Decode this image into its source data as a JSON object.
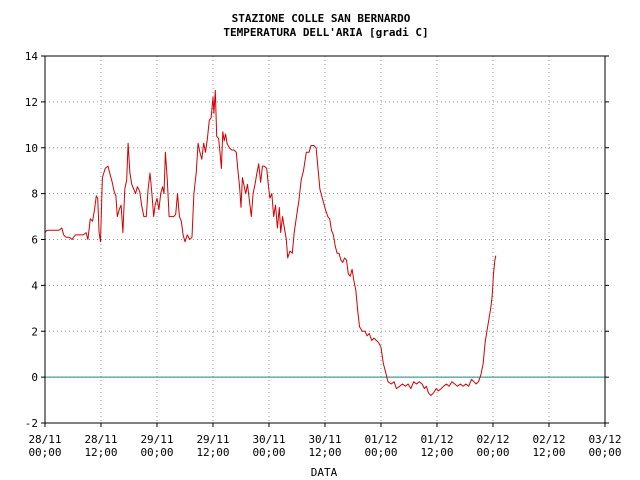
{
  "chart_data": {
    "type": "line",
    "title": "STAZIONE COLLE SAN BERNARDO",
    "subtitle": "TEMPERATURA DELL'ARIA [gradi C]",
    "xlabel": "DATA",
    "ylabel": "",
    "ylim": [
      -2,
      14
    ],
    "yticks": [
      "-2",
      "0",
      "2",
      "4",
      "6",
      "8",
      "10",
      "12",
      "14"
    ],
    "xlim": [
      0,
      120
    ],
    "xticks": [
      {
        "x": 0,
        "line1": "28/11",
        "line2": "00;00"
      },
      {
        "x": 12,
        "line1": "28/11",
        "line2": "12;00"
      },
      {
        "x": 24,
        "line1": "29/11",
        "line2": "00;00"
      },
      {
        "x": 36,
        "line1": "29/11",
        "line2": "12;00"
      },
      {
        "x": 48,
        "line1": "30/11",
        "line2": "00;00"
      },
      {
        "x": 60,
        "line1": "30/11",
        "line2": "12;00"
      },
      {
        "x": 72,
        "line1": "01/12",
        "line2": "00;00"
      },
      {
        "x": 84,
        "line1": "01/12",
        "line2": "12;00"
      },
      {
        "x": 96,
        "line1": "02/12",
        "line2": "00;00"
      },
      {
        "x": 108,
        "line1": "02/12",
        "line2": "12;00"
      },
      {
        "x": 120,
        "line1": "03/12",
        "line2": "00;00"
      }
    ],
    "grid": true,
    "reference_line": {
      "y": 0,
      "color": "#1a8a8a"
    },
    "series": [
      {
        "color": "#d40000",
        "points": [
          [
            0.0,
            6.3
          ],
          [
            0.4,
            6.4
          ],
          [
            1.2,
            6.4
          ],
          [
            2.0,
            6.4
          ],
          [
            3.0,
            6.4
          ],
          [
            3.6,
            6.5
          ],
          [
            4.0,
            6.2
          ],
          [
            4.5,
            6.1
          ],
          [
            5.2,
            6.1
          ],
          [
            5.8,
            6.0
          ],
          [
            6.5,
            6.2
          ],
          [
            7.5,
            6.2
          ],
          [
            8.2,
            6.2
          ],
          [
            8.8,
            6.3
          ],
          [
            9.2,
            6.0
          ],
          [
            9.7,
            6.9
          ],
          [
            10.2,
            6.8
          ],
          [
            10.6,
            7.3
          ],
          [
            11.0,
            7.9
          ],
          [
            11.3,
            7.8
          ],
          [
            11.6,
            6.3
          ],
          [
            11.9,
            5.9
          ],
          [
            12.3,
            8.7
          ],
          [
            12.9,
            9.1
          ],
          [
            13.5,
            9.2
          ],
          [
            14.0,
            8.8
          ],
          [
            14.4,
            8.5
          ],
          [
            14.8,
            8.1
          ],
          [
            15.2,
            7.9
          ],
          [
            15.5,
            7.0
          ],
          [
            15.9,
            7.3
          ],
          [
            16.3,
            7.5
          ],
          [
            16.7,
            6.3
          ],
          [
            17.1,
            8.2
          ],
          [
            17.5,
            8.6
          ],
          [
            17.8,
            10.2
          ],
          [
            18.2,
            8.9
          ],
          [
            18.6,
            8.4
          ],
          [
            19.0,
            8.2
          ],
          [
            19.4,
            8.0
          ],
          [
            19.8,
            8.3
          ],
          [
            20.3,
            8.1
          ],
          [
            20.7,
            7.5
          ],
          [
            21.2,
            7.0
          ],
          [
            21.7,
            7.0
          ],
          [
            22.1,
            8.2
          ],
          [
            22.5,
            8.9
          ],
          [
            22.9,
            8.0
          ],
          [
            23.3,
            7.0
          ],
          [
            23.6,
            7.5
          ],
          [
            24.0,
            7.8
          ],
          [
            24.4,
            7.3
          ],
          [
            24.8,
            8.0
          ],
          [
            25.2,
            8.3
          ],
          [
            25.5,
            8.0
          ],
          [
            25.8,
            9.8
          ],
          [
            26.2,
            8.6
          ],
          [
            26.6,
            7.0
          ],
          [
            27.0,
            7.0
          ],
          [
            27.6,
            7.0
          ],
          [
            28.0,
            7.1
          ],
          [
            28.4,
            8.0
          ],
          [
            28.8,
            7.0
          ],
          [
            29.2,
            6.8
          ],
          [
            29.6,
            6.2
          ],
          [
            30.0,
            5.9
          ],
          [
            30.5,
            6.2
          ],
          [
            31.0,
            6.0
          ],
          [
            31.5,
            6.1
          ],
          [
            31.9,
            8.0
          ],
          [
            32.4,
            8.9
          ],
          [
            32.8,
            10.2
          ],
          [
            33.2,
            9.8
          ],
          [
            33.6,
            9.5
          ],
          [
            34.0,
            10.2
          ],
          [
            34.4,
            9.8
          ],
          [
            34.8,
            10.4
          ],
          [
            35.2,
            11.2
          ],
          [
            35.6,
            11.3
          ],
          [
            36.0,
            12.2
          ],
          [
            36.2,
            11.5
          ],
          [
            36.5,
            12.5
          ],
          [
            36.8,
            10.5
          ],
          [
            37.2,
            10.4
          ],
          [
            37.5,
            9.8
          ],
          [
            37.8,
            9.1
          ],
          [
            38.1,
            10.7
          ],
          [
            38.4,
            10.3
          ],
          [
            38.7,
            10.6
          ],
          [
            39.0,
            10.2
          ],
          [
            39.5,
            10.0
          ],
          [
            40.0,
            9.9
          ],
          [
            40.5,
            9.9
          ],
          [
            41.0,
            9.8
          ],
          [
            41.3,
            9.1
          ],
          [
            41.7,
            8.3
          ],
          [
            42.0,
            7.4
          ],
          [
            42.3,
            8.7
          ],
          [
            42.6,
            8.4
          ],
          [
            43.0,
            8.0
          ],
          [
            43.4,
            8.4
          ],
          [
            43.8,
            7.7
          ],
          [
            44.2,
            7.0
          ],
          [
            44.6,
            8.0
          ],
          [
            45.0,
            8.4
          ],
          [
            45.4,
            8.9
          ],
          [
            45.8,
            9.3
          ],
          [
            46.2,
            8.5
          ],
          [
            46.6,
            9.2
          ],
          [
            47.0,
            9.2
          ],
          [
            47.5,
            9.1
          ],
          [
            47.9,
            8.3
          ],
          [
            48.2,
            7.8
          ],
          [
            48.6,
            8.0
          ],
          [
            49.0,
            7.0
          ],
          [
            49.4,
            7.5
          ],
          [
            49.8,
            6.5
          ],
          [
            50.2,
            7.4
          ],
          [
            50.5,
            6.3
          ],
          [
            50.9,
            7.0
          ],
          [
            51.3,
            6.5
          ],
          [
            51.7,
            6.0
          ],
          [
            52.0,
            5.2
          ],
          [
            52.5,
            5.5
          ],
          [
            53.0,
            5.4
          ],
          [
            53.4,
            6.3
          ],
          [
            53.9,
            7.0
          ],
          [
            54.4,
            7.7
          ],
          [
            54.9,
            8.6
          ],
          [
            55.4,
            9.0
          ],
          [
            56.0,
            9.8
          ],
          [
            56.6,
            9.8
          ],
          [
            57.0,
            10.1
          ],
          [
            57.6,
            10.1
          ],
          [
            58.1,
            10.0
          ],
          [
            58.5,
            9.1
          ],
          [
            58.9,
            8.2
          ],
          [
            59.3,
            7.9
          ],
          [
            59.7,
            7.6
          ],
          [
            60.1,
            7.3
          ],
          [
            60.6,
            7.0
          ],
          [
            61.0,
            6.9
          ],
          [
            61.4,
            6.4
          ],
          [
            61.8,
            6.2
          ],
          [
            62.2,
            5.7
          ],
          [
            62.6,
            5.4
          ],
          [
            63.0,
            5.4
          ],
          [
            63.4,
            5.1
          ],
          [
            63.8,
            5.0
          ],
          [
            64.2,
            5.2
          ],
          [
            64.6,
            5.1
          ],
          [
            65.0,
            4.5
          ],
          [
            65.4,
            4.4
          ],
          [
            65.8,
            4.7
          ],
          [
            66.2,
            4.2
          ],
          [
            66.6,
            3.8
          ],
          [
            67.0,
            2.9
          ],
          [
            67.4,
            2.2
          ],
          [
            68.0,
            2.0
          ],
          [
            68.6,
            2.0
          ],
          [
            69.0,
            1.8
          ],
          [
            69.5,
            1.9
          ],
          [
            70.0,
            1.6
          ],
          [
            70.5,
            1.7
          ],
          [
            71.0,
            1.6
          ],
          [
            71.5,
            1.5
          ],
          [
            72.0,
            1.3
          ],
          [
            72.5,
            0.6
          ],
          [
            73.0,
            0.2
          ],
          [
            73.5,
            -0.2
          ],
          [
            74.2,
            -0.3
          ],
          [
            74.8,
            -0.2
          ],
          [
            75.3,
            -0.5
          ],
          [
            76.0,
            -0.4
          ],
          [
            76.6,
            -0.3
          ],
          [
            77.2,
            -0.4
          ],
          [
            77.8,
            -0.3
          ],
          [
            78.4,
            -0.5
          ],
          [
            79.0,
            -0.2
          ],
          [
            79.6,
            -0.3
          ],
          [
            80.2,
            -0.2
          ],
          [
            80.8,
            -0.3
          ],
          [
            81.3,
            -0.5
          ],
          [
            81.7,
            -0.4
          ],
          [
            82.2,
            -0.7
          ],
          [
            82.7,
            -0.8
          ],
          [
            83.2,
            -0.7
          ],
          [
            83.8,
            -0.5
          ],
          [
            84.3,
            -0.6
          ],
          [
            84.9,
            -0.5
          ],
          [
            85.4,
            -0.4
          ],
          [
            86.0,
            -0.3
          ],
          [
            86.6,
            -0.4
          ],
          [
            87.2,
            -0.2
          ],
          [
            87.8,
            -0.3
          ],
          [
            88.4,
            -0.4
          ],
          [
            89.0,
            -0.3
          ],
          [
            89.6,
            -0.4
          ],
          [
            90.2,
            -0.3
          ],
          [
            90.8,
            -0.4
          ],
          [
            91.4,
            -0.1
          ],
          [
            91.9,
            -0.2
          ],
          [
            92.4,
            -0.3
          ],
          [
            92.9,
            -0.2
          ],
          [
            93.4,
            0.1
          ],
          [
            93.9,
            0.6
          ],
          [
            94.3,
            1.5
          ],
          [
            94.7,
            2.0
          ],
          [
            95.1,
            2.5
          ],
          [
            95.5,
            3.0
          ],
          [
            95.8,
            3.5
          ],
          [
            96.1,
            4.5
          ],
          [
            96.4,
            5.1
          ],
          [
            96.6,
            5.3
          ]
        ]
      }
    ]
  }
}
